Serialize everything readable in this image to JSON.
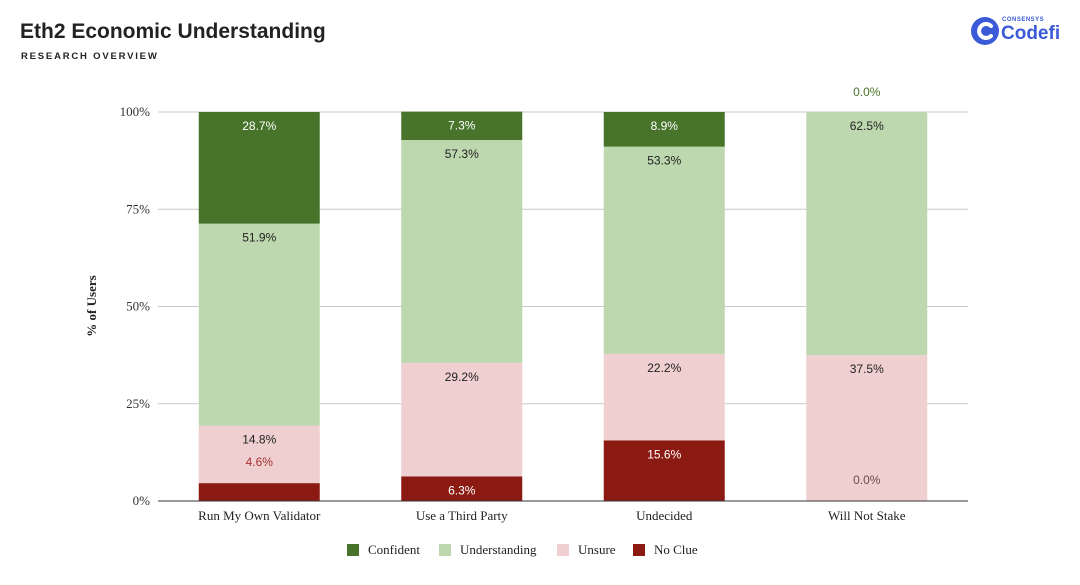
{
  "header": {
    "title": "Eth2 Economic Understanding",
    "subtitle": "RESEARCH OVERVIEW"
  },
  "logo": {
    "small_text": "CONSENSYS",
    "name": "Codefi",
    "color": "#3a5ad8"
  },
  "chart_data": {
    "type": "bar",
    "stacked": true,
    "ylabel": "% of Users",
    "xlabel": "",
    "ylim": [
      0,
      100
    ],
    "yticks": [
      {
        "value": 0,
        "label": "0%"
      },
      {
        "value": 25,
        "label": "25%"
      },
      {
        "value": 50,
        "label": "50%"
      },
      {
        "value": 75,
        "label": "75%"
      },
      {
        "value": 100,
        "label": "100%"
      }
    ],
    "grid": true,
    "legend_position": "bottom",
    "categories": [
      "Run My Own Validator",
      "Use a Third Party",
      "Undecided",
      "Will Not Stake"
    ],
    "series": [
      {
        "name": "No Clue",
        "color": "#8b1a12",
        "values": [
          4.6,
          6.3,
          15.6,
          0.0
        ],
        "labels": [
          "4.6%",
          "6.3%",
          "15.6%",
          "0.0%"
        ]
      },
      {
        "name": "Unsure",
        "color": "#efcfcf",
        "values": [
          14.8,
          29.2,
          22.2,
          37.5
        ],
        "labels": [
          "14.8%",
          "29.2%",
          "22.2%",
          "37.5%"
        ]
      },
      {
        "name": "Understanding",
        "color": "#bdd7ae",
        "values": [
          51.9,
          57.3,
          53.3,
          62.5
        ],
        "labels": [
          "51.9%",
          "57.3%",
          "53.3%",
          "62.5%"
        ]
      },
      {
        "name": "Confident",
        "color": "#47742a",
        "values": [
          28.7,
          7.3,
          8.9,
          0.0
        ],
        "labels": [
          "28.7%",
          "7.3%",
          "8.9%",
          "0.0%"
        ]
      }
    ],
    "legend_order": [
      "Confident",
      "Understanding",
      "Unsure",
      "No Clue"
    ]
  }
}
